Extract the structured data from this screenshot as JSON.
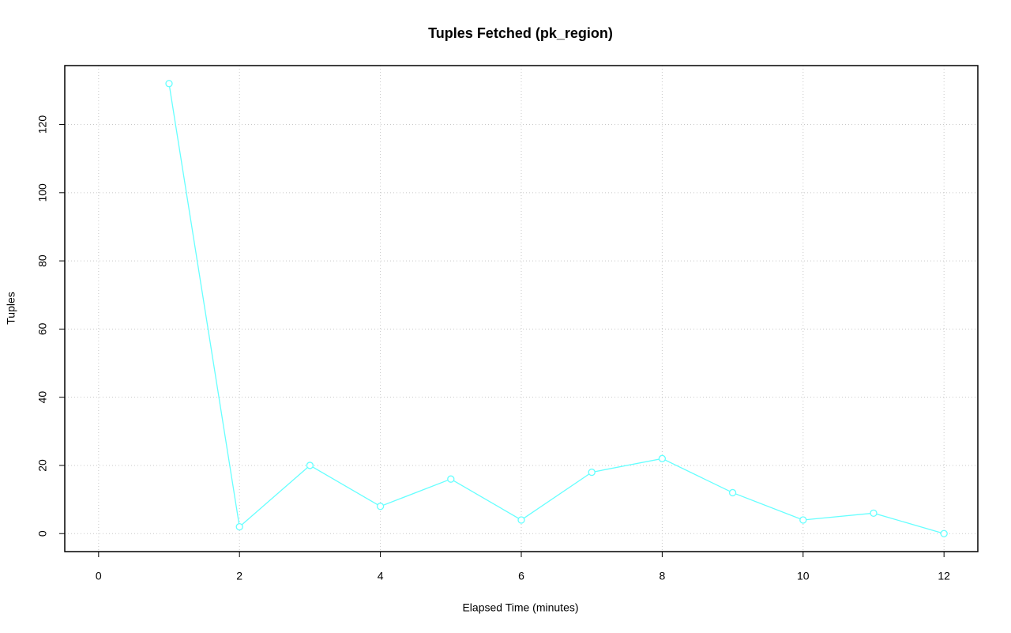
{
  "chart_data": {
    "type": "line",
    "title": "Tuples Fetched (pk_region)",
    "x_label": "Elapsed Time (minutes)",
    "y_label": "Tuples",
    "x": [
      1,
      2,
      3,
      4,
      5,
      6,
      7,
      8,
      9,
      10,
      11,
      12
    ],
    "series": [
      {
        "name": "pk_region",
        "color": "#66ffff",
        "values": [
          132,
          2,
          20,
          8,
          16,
          4,
          18,
          22,
          12,
          4,
          6,
          0
        ]
      }
    ],
    "xlim": [
      -0.48,
      12.48
    ],
    "xticks": [
      0,
      2,
      4,
      6,
      8,
      10,
      12
    ],
    "ylim": [
      -5.28,
      137.28
    ],
    "yticks": [
      0,
      20,
      40,
      60,
      80,
      100,
      120
    ],
    "grid": true,
    "markers": true
  }
}
